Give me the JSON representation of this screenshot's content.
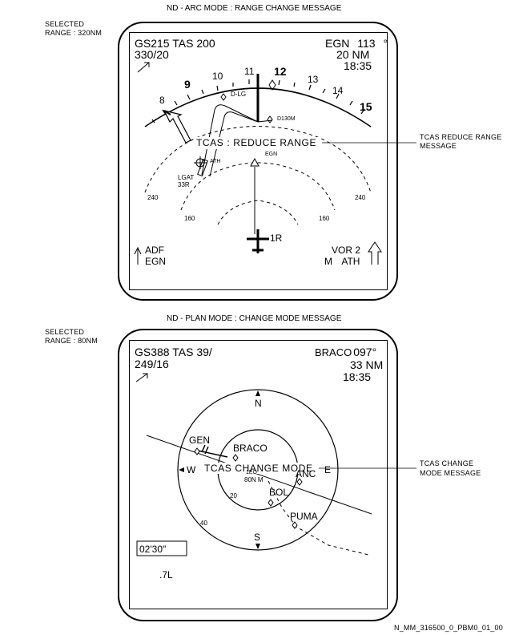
{
  "top": {
    "title": "ND - ARC MODE : RANGE CHANGE MESSAGE",
    "selected_range_line1": "SELECTED",
    "selected_range_line2": "RANGE : 320NM",
    "gs_label": "GS",
    "gs_value": "215",
    "tas_label": "TAS",
    "tas_value": "200",
    "wind": "330/20",
    "waypoint": "EGN",
    "bearing": "113",
    "degree": "°",
    "distance": "20 NM",
    "eta": "18:35",
    "heading_scale": [
      "8",
      "9",
      "10",
      "11",
      "12",
      "13",
      "14",
      "15"
    ],
    "dlg_label": "D-LG",
    "d130m_label": "D130M",
    "message": "TCAS : REDUCE RANGE",
    "egn_label": "EGN",
    "ath_label": "ATH",
    "lgat_label": "LGAT",
    "runway_label": "33R",
    "range_outer_left": "240",
    "range_outer_right": "240",
    "range_inner_left": "160",
    "range_inner_right": "160",
    "aircraft_label": "1R",
    "adf_label": "ADF",
    "adf_station": "EGN",
    "vor_label": "VOR 2",
    "vor_m": "M",
    "vor_station": "ATH",
    "callout": [
      "TCAS REDUCE RANGE",
      "MESSAGE"
    ]
  },
  "bottom": {
    "title": "ND - PLAN MODE : CHANGE MODE MESSAGE",
    "selected_range_line1": "SELECTED",
    "selected_range_line2": "RANGE : 80NM",
    "gs_label": "GS",
    "gs_value": "388",
    "tas_label": "TAS",
    "tas_value": "39/",
    "wind": "249/16",
    "waypoint": "BRACO",
    "bearing": "097°",
    "distance": "33 NM",
    "eta": "18:35",
    "north": "N",
    "south": "S",
    "west": "W",
    "gen_label": "GEN",
    "braco_label": "BRACO",
    "message": "TCAS CHANGE MODE",
    "anc_label": "ANC",
    "east_partial": "E",
    "alt_label_1": "1EO",
    "alt_label_2": "80N M",
    "bol_label": "BOL",
    "puma_label": "PUMA",
    "ring_20": "20",
    "ring_40": "40",
    "chrono": "02'30\"",
    "bottom_text": ".7L",
    "callout": [
      "TCAS CHANGE",
      "MODE MESSAGE"
    ]
  },
  "figure_ref": "N_MM_316500_0_PBM0_01_00"
}
